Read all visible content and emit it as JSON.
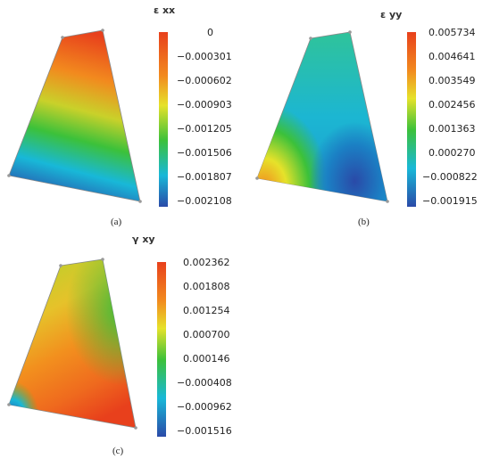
{
  "panels": [
    {
      "id": "a",
      "colorbar_title": "ε xx",
      "ticks": [
        "0",
        "−0.000301",
        "−0.000602",
        "−0.000903",
        "−0.001205",
        "−0.001506",
        "−0.001807",
        "−0.002108"
      ],
      "caption": "(a)"
    },
    {
      "id": "b",
      "colorbar_title": "ε yy",
      "ticks": [
        "0.005734",
        "0.004641",
        "0.003549",
        "0.002456",
        "0.001363",
        "0.000270",
        "−0.000822",
        "−0.001915"
      ],
      "caption": "(b)"
    },
    {
      "id": "c",
      "colorbar_title": "γ xy",
      "ticks": [
        "0.002362",
        "0.001808",
        "0.001254",
        "0.000700",
        "0.000146",
        "−0.000408",
        "−0.000962",
        "−0.001516"
      ],
      "caption": "(c)"
    }
  ],
  "colors": {
    "red": "#e8401c",
    "orange": "#f28a1e",
    "yellow": "#e6e22a",
    "green": "#3cc13a",
    "cyan": "#18b8d8",
    "blue": "#2a4aa8"
  }
}
